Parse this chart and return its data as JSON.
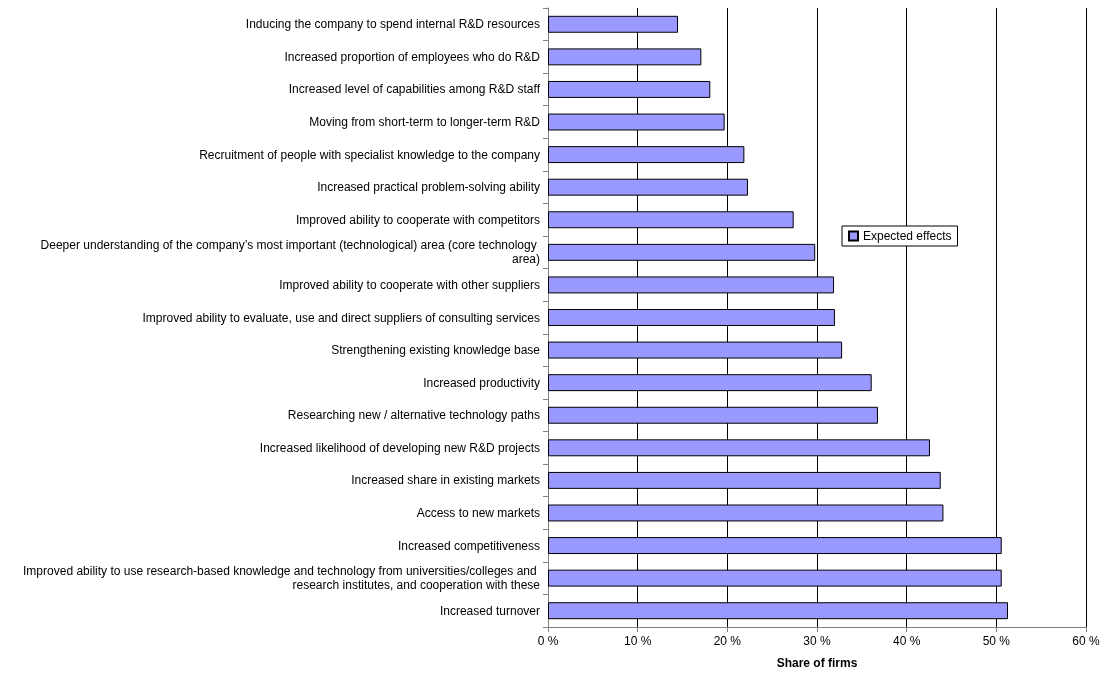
{
  "chart_data": {
    "type": "bar",
    "orientation": "horizontal",
    "xlabel": "Share of firms",
    "categories": [
      "Inducing the company to spend internal R&D resources",
      "Increased proportion of employees who do R&D",
      "Increased level of capabilities among R&D staff",
      "Moving from short-term to longer-term R&D",
      "Recruitment of people with specialist knowledge to the company",
      "Increased practical problem-solving ability",
      "Improved ability to cooperate with competitors",
      "Deeper understanding of the company’s most important (technological) area (core technology area)",
      "Improved ability to cooperate with other suppliers",
      "Improved ability to evaluate, use and direct suppliers of consulting services",
      "Strengthening existing knowledge base",
      "Increased productivity",
      "Researching new / alternative technology paths",
      "Increased likelihood of developing new R&D projects",
      "Increased share in existing markets",
      "Access to new markets",
      "Increased competitiveness",
      "Improved ability to use research-based knowledge and technology from universities/colleges and research institutes, and cooperation with these",
      "Increased turnover"
    ],
    "series": [
      {
        "name": "Expected effects",
        "color": "#9999ff",
        "values": [
          14.5,
          17.1,
          18.1,
          19.7,
          21.9,
          22.3,
          27.4,
          29.8,
          31.9,
          32.0,
          32.8,
          36.1,
          36.8,
          42.6,
          43.8,
          44.1,
          50.6,
          50.6,
          51.3
        ]
      }
    ],
    "xlim": [
      0,
      60
    ],
    "xticks": [
      {
        "value": 0,
        "label": "0 %"
      },
      {
        "value": 10,
        "label": "10 %"
      },
      {
        "value": 20,
        "label": "20 %"
      },
      {
        "value": 30,
        "label": "30 %"
      },
      {
        "value": 40,
        "label": "40 %"
      },
      {
        "value": 50,
        "label": "50 %"
      },
      {
        "value": 60,
        "label": "60 %"
      }
    ],
    "grid": "x",
    "legend": "right"
  }
}
